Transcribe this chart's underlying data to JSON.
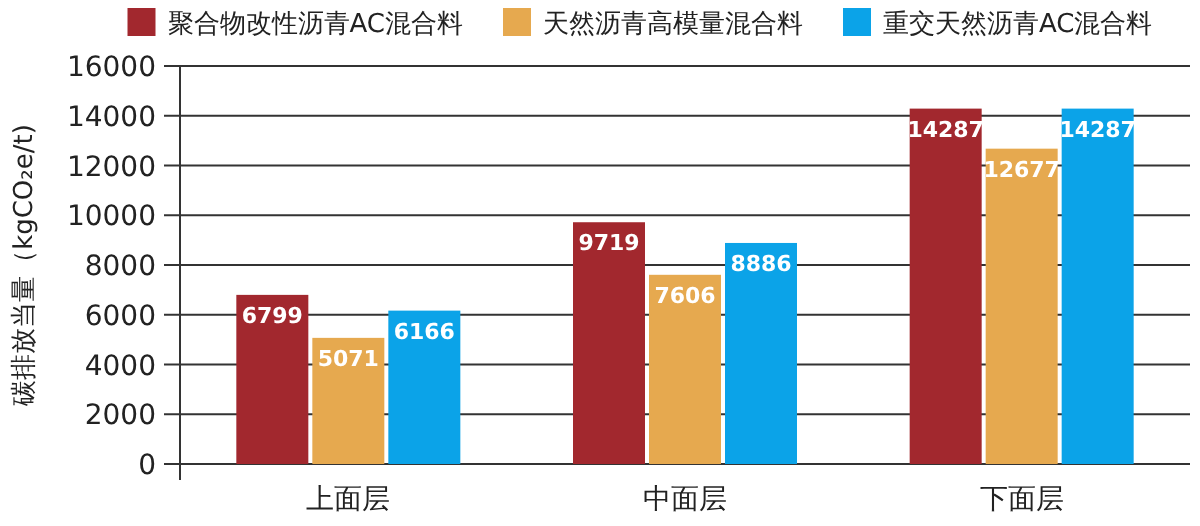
{
  "chart_data": {
    "type": "bar",
    "ylabel": "碳排放当量（kgCO₂e/t)",
    "categories": [
      "上面层",
      "中面层",
      "下面层"
    ],
    "series": [
      {
        "name": "聚合物改性沥青AC混合料",
        "color": "#a2282e",
        "values": [
          6799,
          9719,
          14287
        ]
      },
      {
        "name": "天然沥青高模量混合料",
        "color": "#e6a94f",
        "values": [
          5071,
          7606,
          12677
        ]
      },
      {
        "name": "重交天然沥青AC混合料",
        "color": "#0ba3e8",
        "values": [
          6166,
          8886,
          14287
        ]
      }
    ],
    "ylim": [
      0,
      16000
    ],
    "yticks": [
      0,
      2000,
      4000,
      6000,
      8000,
      10000,
      12000,
      14000,
      16000
    ],
    "grid": "y",
    "legend": "top",
    "data_labels": true
  }
}
